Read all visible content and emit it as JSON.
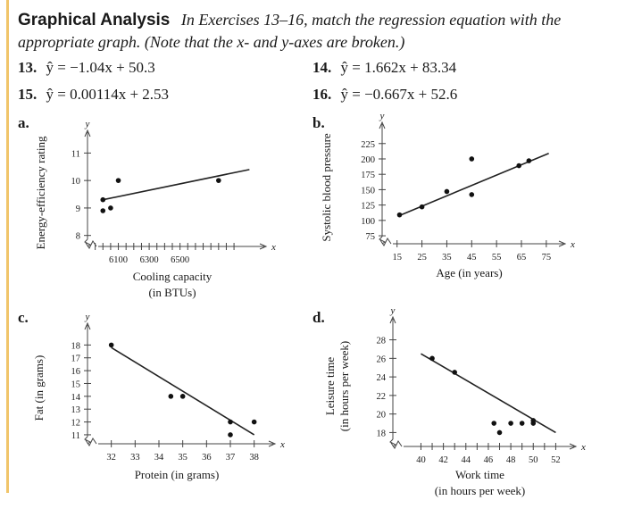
{
  "header": {
    "title": "Graphical Analysis",
    "instruction_line1": "In Exercises 13–16, match the regression equation with the",
    "instruction_line2": "appropriate graph. (Note that the x- and y-axes are broken.)"
  },
  "equations": [
    {
      "number": "13.",
      "text": "ŷ = −1.04x + 50.3"
    },
    {
      "number": "14.",
      "text": "ŷ = 1.662x + 83.34"
    },
    {
      "number": "15.",
      "text": "ŷ = 0.00114x + 2.53"
    },
    {
      "number": "16.",
      "text": "ŷ = −0.667x + 52.6"
    }
  ],
  "chart_data": [
    {
      "label": "a.",
      "type": "scatter",
      "xlabel": "Cooling capacity",
      "xlabel2": "(in BTUs)",
      "ylabel": "Energy-efficiency rating",
      "ylabel2": "",
      "x_axis_letter": "x",
      "y_axis_letter": "y",
      "xticks": [
        6100,
        6300,
        6500
      ],
      "yticks": [
        8,
        9,
        10,
        11
      ],
      "xlim": [
        5900,
        7000
      ],
      "ylim": [
        7.6,
        11.5
      ],
      "x_ticks_minor": [
        5950,
        6000,
        6050,
        6100,
        6150,
        6200,
        6250,
        6300,
        6350,
        6400,
        6450,
        6500,
        6550,
        6600,
        6650,
        6700,
        6750,
        6800,
        6850
      ],
      "points": [
        [
          6000,
          9.3
        ],
        [
          6000,
          8.9
        ],
        [
          6050,
          9.0
        ],
        [
          6100,
          10.0
        ],
        [
          6750,
          10.0
        ]
      ],
      "fit_line": [
        [
          6000,
          9.3
        ],
        [
          6950,
          10.4
        ]
      ]
    },
    {
      "label": "b.",
      "type": "scatter",
      "xlabel": "Age (in years)",
      "xlabel2": "",
      "ylabel": "Systolic blood pressure",
      "ylabel2": "",
      "x_axis_letter": "x",
      "y_axis_letter": "y",
      "xticks": [
        15,
        25,
        35,
        45,
        55,
        65,
        75
      ],
      "yticks": [
        75,
        100,
        125,
        150,
        175,
        200,
        225
      ],
      "xlim": [
        9,
        79
      ],
      "ylim": [
        62,
        245
      ],
      "x_ticks_minor": [
        15,
        25,
        35,
        45,
        55,
        65,
        75
      ],
      "points": [
        [
          16,
          109
        ],
        [
          25,
          122
        ],
        [
          35,
          147
        ],
        [
          45,
          200
        ],
        [
          45,
          142
        ],
        [
          64,
          189
        ],
        [
          68,
          197
        ]
      ],
      "fit_line": [
        [
          16,
          108
        ],
        [
          76,
          209
        ]
      ]
    },
    {
      "label": "c.",
      "type": "scatter",
      "xlabel": "Protein (in grams)",
      "xlabel2": "",
      "ylabel": "Fat (in grams)",
      "ylabel2": "",
      "x_axis_letter": "x",
      "y_axis_letter": "y",
      "xticks": [
        32,
        33,
        34,
        35,
        36,
        37,
        38
      ],
      "yticks": [
        11,
        12,
        13,
        14,
        15,
        16,
        17,
        18
      ],
      "xlim": [
        31,
        38.5
      ],
      "ylim": [
        10.3,
        19
      ],
      "x_ticks_minor": [
        32,
        33,
        34,
        35,
        36,
        37,
        38
      ],
      "points": [
        [
          32,
          18
        ],
        [
          34.5,
          14
        ],
        [
          35,
          14
        ],
        [
          37,
          12
        ],
        [
          37,
          11
        ],
        [
          38,
          12
        ]
      ],
      "fit_line": [
        [
          32,
          17.8
        ],
        [
          38,
          11.0
        ]
      ]
    },
    {
      "label": "d.",
      "type": "scatter",
      "xlabel": "Work time",
      "xlabel2": "(in hours per week)",
      "ylabel": "Leisure time",
      "ylabel2": "(in hours per week)",
      "x_axis_letter": "x",
      "y_axis_letter": "y",
      "xticks": [
        40,
        42,
        44,
        46,
        48,
        50,
        52
      ],
      "yticks": [
        18,
        20,
        22,
        24,
        26,
        28
      ],
      "xlim": [
        37.5,
        53
      ],
      "ylim": [
        16.5,
        29.5
      ],
      "x_ticks_minor": [
        40,
        41,
        42,
        43,
        44,
        45,
        46,
        47,
        48,
        49,
        50,
        51,
        52
      ],
      "points": [
        [
          41,
          26
        ],
        [
          43,
          24.5
        ],
        [
          46.5,
          19
        ],
        [
          47,
          18
        ],
        [
          48,
          19
        ],
        [
          49,
          19
        ],
        [
          50,
          19
        ],
        [
          50,
          19.3
        ]
      ],
      "fit_line": [
        [
          40,
          26.5
        ],
        [
          52,
          18.0
        ]
      ]
    }
  ]
}
